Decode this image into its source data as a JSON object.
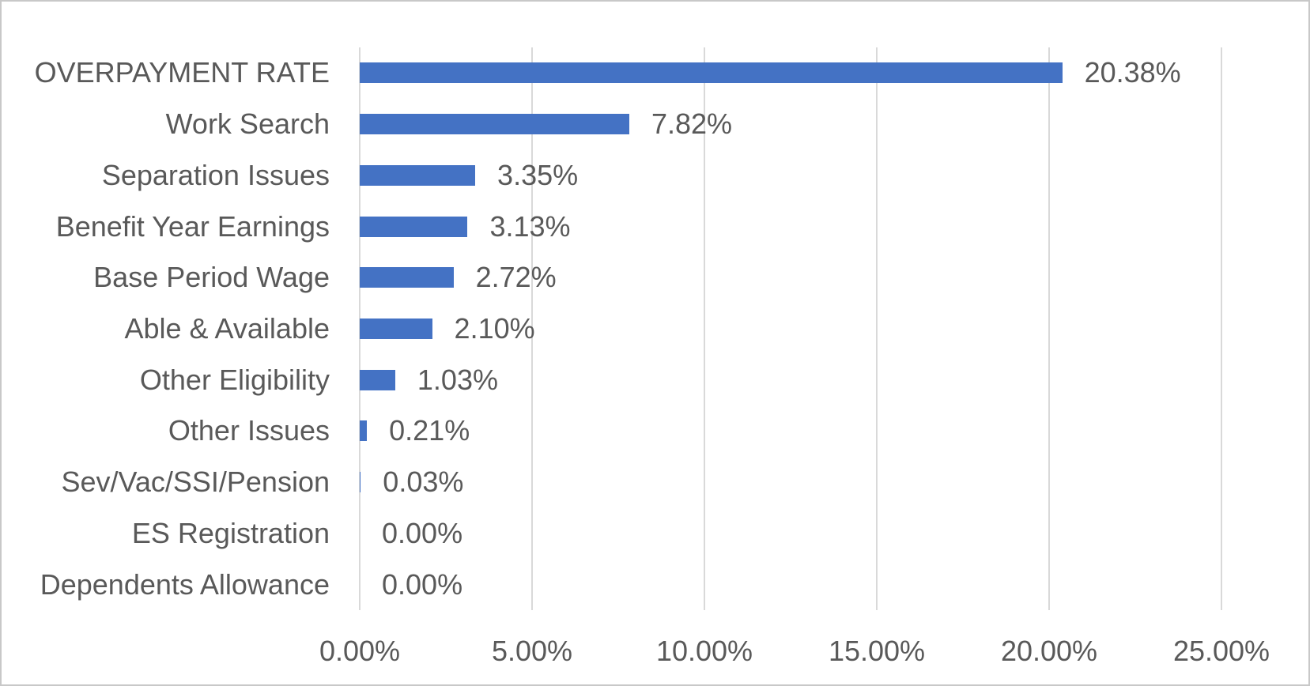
{
  "chart_data": {
    "type": "bar",
    "orientation": "horizontal",
    "title": "",
    "xlabel": "",
    "ylabel": "",
    "categories": [
      "OVERPAYMENT RATE",
      "Work Search",
      "Separation Issues",
      "Benefit Year Earnings",
      "Base Period Wage",
      "Able & Available",
      "Other Eligibility",
      "Other Issues",
      "Sev/Vac/SSI/Pension",
      "ES Registration",
      "Dependents Allowance"
    ],
    "values": [
      20.38,
      7.82,
      3.35,
      3.13,
      2.72,
      2.1,
      1.03,
      0.21,
      0.03,
      0.0,
      0.0
    ],
    "value_labels": [
      "20.38%",
      "7.82%",
      "3.35%",
      "3.13%",
      "2.72%",
      "2.10%",
      "1.03%",
      "0.21%",
      "0.03%",
      "0.00%",
      "0.00%"
    ],
    "xlim": [
      0,
      25
    ],
    "x_ticks": [
      0,
      5,
      10,
      15,
      20,
      25
    ],
    "x_tick_labels": [
      "0.00%",
      "5.00%",
      "10.00%",
      "15.00%",
      "20.00%",
      "25.00%"
    ],
    "grid": true,
    "legend": false,
    "colors": {
      "bar": "#4472c4",
      "text": "#595959",
      "gridline": "#d9d9d9",
      "frame_border": "#c8c8c8",
      "background": "#ffffff"
    }
  }
}
